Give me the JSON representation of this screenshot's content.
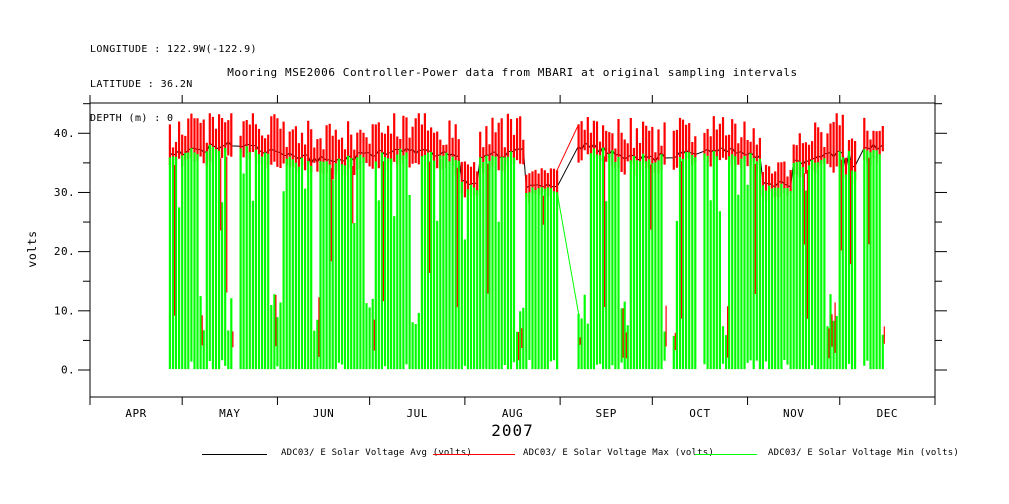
{
  "header": {
    "longitude": "LONGITUDE : 122.9W(-122.9)",
    "latitude": "LATITUDE : 36.2N",
    "depth": "DEPTH (m) : 0"
  },
  "chart_data": {
    "type": "line",
    "title": "Mooring MSE2006 Controller-Power data from MBARI at original sampling intervals",
    "xlabel": "2007",
    "ylabel": "volts",
    "x_tick_labels": [
      "APR",
      "MAY",
      "JUN",
      "JUL",
      "AUG",
      "SEP",
      "OCT",
      "NOV",
      "DEC"
    ],
    "month_days": [
      30,
      31,
      30,
      31,
      31,
      30,
      31,
      30,
      31
    ],
    "y_tick_labels": [
      "0.",
      "10.",
      "20.",
      "30.",
      "40."
    ],
    "y_major_ticks": [
      0,
      10,
      20,
      30,
      40
    ],
    "y_minor_ticks": [
      5,
      15,
      25,
      35,
      45
    ],
    "ylim": [
      -4.6,
      45.1
    ],
    "grid": false,
    "legend_position": "bottom",
    "background": "#ffffff",
    "axis_color": "#000000",
    "series": [
      {
        "name": "ADC03/ E Solar Voltage Avg (volts)",
        "color": "#000000"
      },
      {
        "name": "ADC03/ E Solar Voltage Max (volts)",
        "color": "#ff0000"
      },
      {
        "name": "ADC03/ E Solar Voltage Min (volts)",
        "color": "#00ff00"
      }
    ],
    "sampling": {
      "data_start_day": 26,
      "data_end_day": 258,
      "days_total": 275,
      "gaps_days": [
        [
          46.3,
          48.3
        ],
        [
          152.6,
          158.2
        ],
        [
          187.8,
          189.3
        ],
        [
          197.6,
          199.0
        ],
        [
          249.6,
          251.0
        ]
      ],
      "dips": [
        {
          "start": 121.0,
          "end": 126.5,
          "level": 32.0
        },
        {
          "start": 141.5,
          "end": 152.6,
          "level": 31.5
        },
        {
          "start": 219.0,
          "end": 228.0,
          "level": 31.8
        },
        {
          "start": 245.0,
          "end": 249.6,
          "level": 34.5
        }
      ],
      "avg_base_volts": 37.1,
      "max_peak_volts": 43.4,
      "min_floor_volts": 0.0,
      "low_block_top_range": [
        5.5,
        13.0
      ],
      "seed": 20071
    }
  }
}
